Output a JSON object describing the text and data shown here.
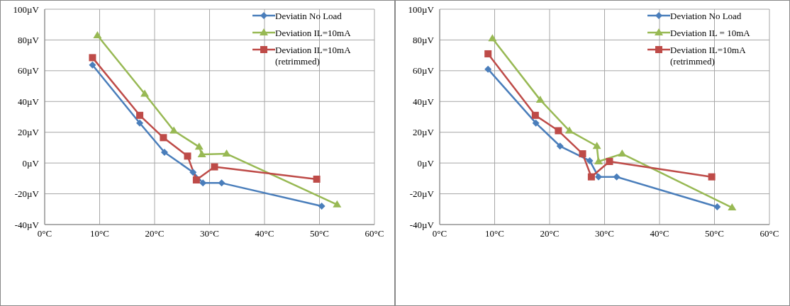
{
  "chart_data": [
    {
      "type": "line",
      "x": [
        8.7,
        17.3,
        21.8,
        27,
        28.8,
        32.2,
        50.4
      ],
      "xlim": [
        0,
        60
      ],
      "xticks": [
        {
          "value": 0,
          "label": "0°C"
        },
        {
          "value": 10,
          "label": "10°C"
        },
        {
          "value": 20,
          "label": "20°C"
        },
        {
          "value": 30,
          "label": "30°C"
        },
        {
          "value": 40,
          "label": "40°C"
        },
        {
          "value": 50,
          "label": "50°C"
        },
        {
          "value": 60,
          "label": "60°C"
        }
      ],
      "ylim": [
        -40,
        100
      ],
      "yticks": [
        {
          "value": -40,
          "label": "-40µV"
        },
        {
          "value": -20,
          "label": "-20µV"
        },
        {
          "value": 0,
          "label": "0µV"
        },
        {
          "value": 20,
          "label": "20µV"
        },
        {
          "value": 40,
          "label": "40µV"
        },
        {
          "value": 60,
          "label": "60µV"
        },
        {
          "value": 80,
          "label": "80µV"
        },
        {
          "value": 100,
          "label": "100µV"
        }
      ],
      "grid": true,
      "legend": "top right",
      "series": [
        {
          "name": "Deviatin No Load",
          "color": "#4a7ebb",
          "marker": "diamond",
          "values": [
            63.7,
            26,
            7,
            -6,
            -13,
            -13,
            -28
          ]
        },
        {
          "name": "Deviation IL=10mA",
          "color": "#98b954",
          "marker": "triangle",
          "x": [
            9.6,
            18.2,
            23.5,
            28.1,
            28.6,
            33.1,
            53.2
          ],
          "values": [
            83,
            45,
            21,
            10.5,
            5.6,
            6,
            -27
          ]
        },
        {
          "name": "Deviation IL=10mA (retrimmed)",
          "color": "#be4b48",
          "marker": "square",
          "x": [
            8.7,
            17.3,
            21.6,
            26,
            27.6,
            30.9,
            49.5
          ],
          "values": [
            68.5,
            31,
            16.5,
            4.5,
            -11,
            -2.5,
            -10.5
          ]
        }
      ]
    },
    {
      "type": "line",
      "x": [
        8.8,
        17.5,
        21.9,
        27.3,
        28.9,
        32.2,
        50.5
      ],
      "xlim": [
        0,
        60
      ],
      "xticks": [
        {
          "value": 0,
          "label": "0°C"
        },
        {
          "value": 10,
          "label": "10°C"
        },
        {
          "value": 20,
          "label": "20°C"
        },
        {
          "value": 30,
          "label": "30°C"
        },
        {
          "value": 40,
          "label": "40°C"
        },
        {
          "value": 50,
          "label": "50°C"
        },
        {
          "value": 60,
          "label": "60°C"
        }
      ],
      "ylim": [
        -40,
        100
      ],
      "yticks": [
        {
          "value": -40,
          "label": "-40µV"
        },
        {
          "value": -20,
          "label": "-20µV"
        },
        {
          "value": 0,
          "label": "0µV"
        },
        {
          "value": 20,
          "label": "20µV"
        },
        {
          "value": 40,
          "label": "40µV"
        },
        {
          "value": 60,
          "label": "60µV"
        },
        {
          "value": 80,
          "label": "80µV"
        },
        {
          "value": 100,
          "label": "100µV"
        }
      ],
      "grid": true,
      "legend": "top right",
      "series": [
        {
          "name": "Deviation No Load",
          "color": "#4a7ebb",
          "marker": "diamond",
          "values": [
            61,
            26,
            11,
            1.5,
            -9,
            -9,
            -28.5
          ]
        },
        {
          "name": "Deviation IL = 10mA",
          "color": "#98b954",
          "marker": "triangle",
          "x": [
            9.6,
            18.3,
            23.6,
            28.6,
            28.9,
            33.2,
            53.2
          ],
          "values": [
            81,
            41,
            21,
            11,
            1,
            6,
            -29
          ]
        },
        {
          "name": "Deviation IL=10mA (retrimmed)",
          "color": "#be4b48",
          "marker": "square",
          "x": [
            8.8,
            17.4,
            21.6,
            26,
            27.6,
            30.9,
            49.5
          ],
          "values": [
            71,
            31,
            21,
            6,
            -9,
            1,
            -9
          ]
        }
      ]
    }
  ]
}
